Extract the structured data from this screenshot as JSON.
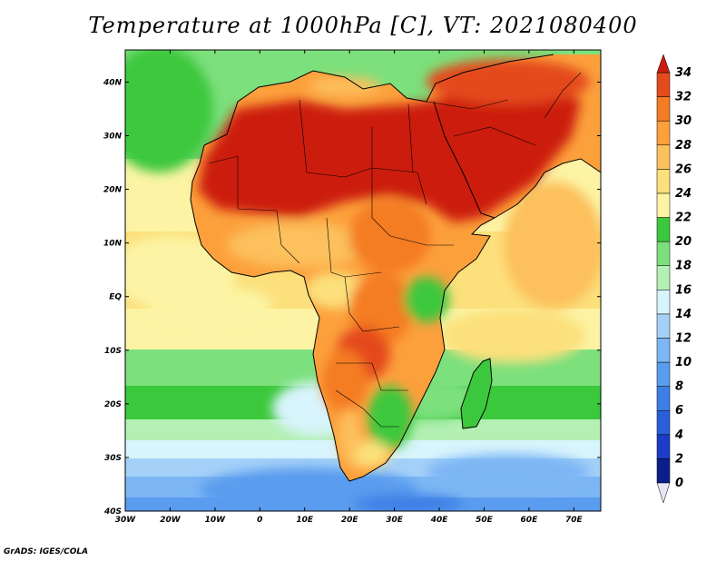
{
  "title": "Temperature at 1000hPa [C], VT: 2021080400",
  "credit": "GrADS: IGES/COLA",
  "map": {
    "lon_range": [
      -30,
      76
    ],
    "lat_range": [
      -40,
      46
    ],
    "lon_ticks": [
      {
        "value": -30,
        "label": "30W"
      },
      {
        "value": -20,
        "label": "20W"
      },
      {
        "value": -10,
        "label": "10W"
      },
      {
        "value": 0,
        "label": "0"
      },
      {
        "value": 10,
        "label": "10E"
      },
      {
        "value": 20,
        "label": "20E"
      },
      {
        "value": 30,
        "label": "30E"
      },
      {
        "value": 40,
        "label": "40E"
      },
      {
        "value": 50,
        "label": "50E"
      },
      {
        "value": 60,
        "label": "60E"
      },
      {
        "value": 70,
        "label": "70E"
      }
    ],
    "lat_ticks": [
      {
        "value": 40,
        "label": "40N"
      },
      {
        "value": 30,
        "label": "30N"
      },
      {
        "value": 20,
        "label": "20N"
      },
      {
        "value": 10,
        "label": "10N"
      },
      {
        "value": 0,
        "label": "EQ"
      },
      {
        "value": -10,
        "label": "10S"
      },
      {
        "value": -20,
        "label": "20S"
      },
      {
        "value": -30,
        "label": "30S"
      },
      {
        "value": -40,
        "label": "40S"
      }
    ]
  },
  "colorbar": {
    "labels": [
      "0",
      "2",
      "4",
      "6",
      "8",
      "10",
      "12",
      "14",
      "16",
      "18",
      "20",
      "22",
      "24",
      "26",
      "28",
      "30",
      "32",
      "34"
    ],
    "colors": [
      "#0b1e8c",
      "#1a3cc6",
      "#2a5fdc",
      "#3c7fe6",
      "#5a9cee",
      "#7cb6f4",
      "#a4d0f8",
      "#d8f4fc",
      "#b4f0b4",
      "#7ce07c",
      "#3cc83c",
      "#fcf4a4",
      "#fce07c",
      "#fcc05c",
      "#fca03c",
      "#f47c24",
      "#e44a1c",
      "#cc1c10"
    ],
    "under_color": "#e8e4f8",
    "over_color": "#cc1c10"
  }
}
